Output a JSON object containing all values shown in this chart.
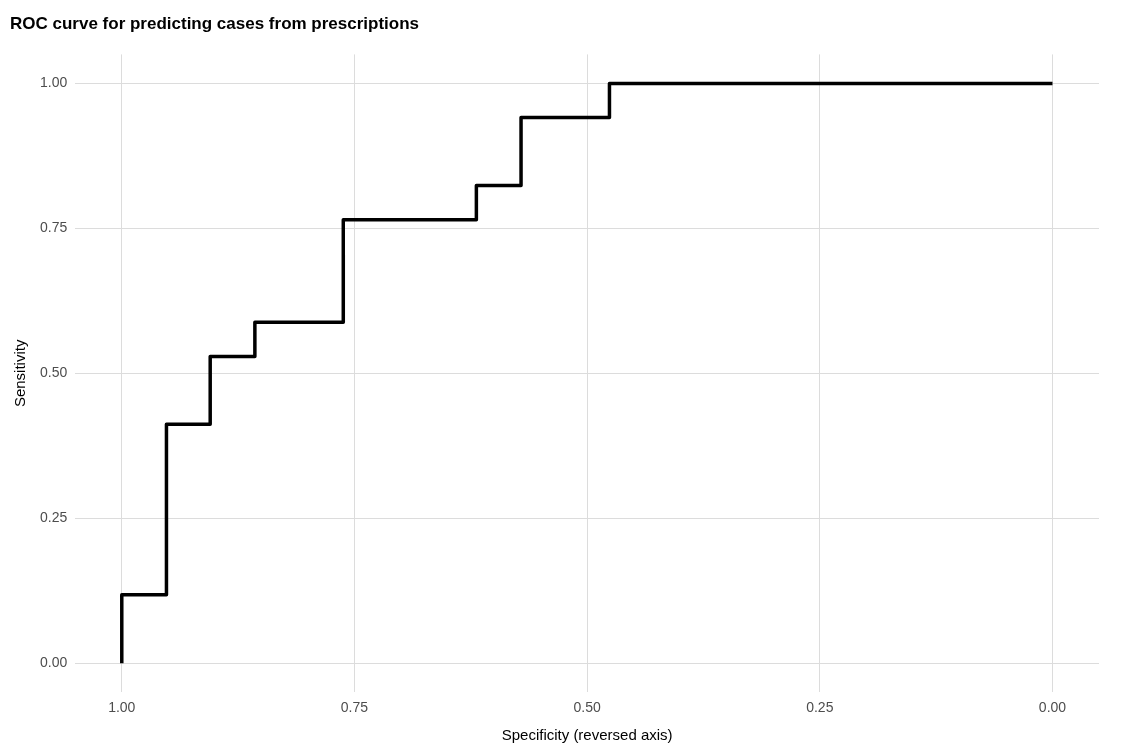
{
  "chart_data": {
    "type": "step",
    "title": "ROC curve for predicting cases from prescriptions",
    "xlabel": "Specificity (reversed axis)",
    "ylabel": "Sensitivity",
    "x": [
      1.0,
      1.0,
      0.952,
      0.905,
      0.857,
      0.762,
      0.619,
      0.571,
      0.476,
      0.0
    ],
    "series": [
      {
        "color": "#000000",
        "values": [
          0.0,
          0.118,
          0.412,
          0.529,
          0.588,
          0.765,
          0.824,
          0.941,
          1.0,
          1.0
        ]
      }
    ],
    "xlim": [
      1.05,
      -0.05
    ],
    "ylim": [
      -0.05,
      1.05
    ],
    "xticks": [
      {
        "value": 1.0,
        "label": "1.00"
      },
      {
        "value": 0.75,
        "label": "0.75"
      },
      {
        "value": 0.5,
        "label": "0.50"
      },
      {
        "value": 0.25,
        "label": "0.25"
      },
      {
        "value": 0.0,
        "label": "0.00"
      }
    ],
    "yticks": [
      {
        "value": 0.0,
        "label": "0.00"
      },
      {
        "value": 0.25,
        "label": "0.25"
      },
      {
        "value": 0.5,
        "label": "0.50"
      },
      {
        "value": 0.75,
        "label": "0.75"
      },
      {
        "value": 1.0,
        "label": "1.00"
      }
    ],
    "grid": true,
    "legend": false,
    "marker": "none",
    "line_style": "solid"
  }
}
